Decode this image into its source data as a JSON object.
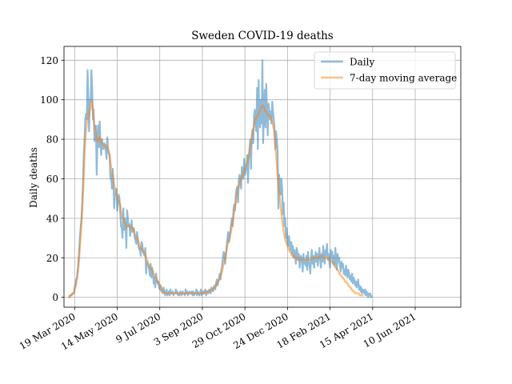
{
  "chart_data": {
    "type": "line",
    "title": "Sweden COVID-19 deaths",
    "xlabel": "",
    "ylabel": "Daily deaths",
    "x_type": "date",
    "xlim": [
      "2020-03-05",
      "2021-08-09"
    ],
    "ylim": [
      -5,
      127
    ],
    "xticks": [
      {
        "date": "2020-03-19",
        "label": "19 Mar 2020"
      },
      {
        "date": "2020-05-14",
        "label": "14 May 2020"
      },
      {
        "date": "2020-07-09",
        "label": "9 Jul 2020"
      },
      {
        "date": "2020-09-03",
        "label": "3 Sep 2020"
      },
      {
        "date": "2020-10-29",
        "label": "29 Oct 2020"
      },
      {
        "date": "2020-12-24",
        "label": "24 Dec 2020"
      },
      {
        "date": "2021-02-18",
        "label": "18 Feb 2021"
      },
      {
        "date": "2021-04-15",
        "label": "15 Apr 2021"
      },
      {
        "date": "2021-06-10",
        "label": "10 Jun 2021"
      }
    ],
    "yticks": [
      0,
      20,
      40,
      60,
      80,
      100,
      120
    ],
    "grid": true,
    "legend_position": "top-right",
    "start_date": "2020-03-11",
    "series": [
      {
        "name": "Daily",
        "color": "#1f77b4",
        "opacity": 0.5,
        "values": [
          0,
          0,
          1,
          1,
          1,
          2,
          2,
          2,
          5,
          6,
          9,
          10,
          14,
          18,
          24,
          31,
          36,
          40,
          48,
          58,
          72,
          80,
          90,
          93,
          90,
          115,
          101,
          84,
          100,
          99,
          115,
          107,
          90,
          95,
          79,
          81,
          87,
          62,
          80,
          87,
          76,
          89,
          78,
          72,
          80,
          77,
          75,
          78,
          77,
          74,
          70,
          81,
          74,
          73,
          72,
          60,
          62,
          55,
          65,
          58,
          45,
          52,
          53,
          55,
          44,
          48,
          52,
          50,
          43,
          36,
          35,
          30,
          45,
          34,
          40,
          37,
          25,
          44,
          40,
          36,
          37,
          31,
          35,
          39,
          33,
          34,
          35,
          30,
          29,
          27,
          33,
          30,
          26,
          24,
          25,
          21,
          28,
          27,
          23,
          22,
          21,
          25,
          12,
          18,
          17,
          16,
          14,
          11,
          17,
          10,
          15,
          12,
          7,
          10,
          5,
          12,
          9,
          7,
          8,
          5,
          4,
          6,
          3,
          4,
          2,
          5,
          3,
          1,
          2,
          4,
          1,
          2,
          3,
          1,
          4,
          2,
          2,
          3,
          1,
          2,
          2,
          4,
          2,
          3,
          1,
          2,
          1,
          3,
          2,
          1,
          3,
          2,
          2,
          1,
          4,
          2,
          3,
          1,
          2,
          3,
          2,
          2,
          3,
          1,
          3,
          1,
          2,
          2,
          4,
          1,
          3,
          2,
          1,
          2,
          4,
          1,
          2,
          3,
          2,
          3,
          4,
          1,
          2,
          3,
          2,
          4,
          3,
          2,
          5,
          4,
          3,
          5,
          6,
          4,
          7,
          9,
          6,
          8,
          10,
          12,
          9,
          14,
          16,
          20,
          23,
          22,
          17,
          21,
          26,
          30,
          33,
          28,
          31,
          34,
          38,
          40,
          36,
          45,
          47,
          44,
          52,
          55,
          56,
          48,
          60,
          62,
          58,
          55,
          66,
          64,
          60,
          70,
          62,
          64,
          66,
          72,
          58,
          70,
          75,
          80,
          65,
          82,
          85,
          78,
          92,
          95,
          88,
          84,
          106,
          75,
          110,
          93,
          86,
          100,
          88,
          120,
          78,
          94,
          105,
          86,
          108,
          96,
          82,
          98,
          95,
          90,
          94,
          88,
          99,
          94,
          90,
          85,
          75,
          84,
          80,
          74,
          45,
          62,
          58,
          52,
          60,
          55,
          42,
          48,
          36,
          40,
          30,
          35,
          28,
          26,
          31,
          27,
          24,
          28,
          22,
          26,
          20,
          24,
          21,
          17,
          25,
          23,
          19,
          22,
          15,
          20,
          21,
          18,
          13,
          22,
          17,
          19,
          16,
          21,
          14,
          23,
          18,
          16,
          12,
          20,
          24,
          17,
          21,
          15,
          19,
          23,
          18,
          22,
          16,
          21,
          25,
          19,
          15,
          22,
          18,
          26,
          20,
          17,
          24,
          21,
          27,
          19,
          22,
          18,
          15,
          24,
          20,
          23,
          17,
          21,
          16,
          25,
          19,
          14,
          22,
          18,
          20,
          16,
          13,
          18,
          15,
          17,
          12,
          14,
          11,
          16,
          13,
          10,
          14,
          12,
          9,
          11,
          8,
          12,
          7,
          10,
          9,
          6,
          8,
          5,
          7,
          9,
          4,
          6,
          3,
          5,
          2,
          4,
          3,
          2,
          4,
          1,
          3,
          2,
          0,
          2,
          1,
          2,
          0,
          1
        ]
      },
      {
        "name": "7-day moving average",
        "color": "#ff7f0e",
        "opacity": 0.5,
        "values": [
          0,
          0,
          1,
          1,
          1,
          2,
          2,
          2,
          4,
          5,
          7,
          9,
          12,
          15,
          20,
          26,
          31,
          37,
          44,
          52,
          62,
          71,
          79,
          84,
          87,
          91,
          93,
          92,
          95,
          96,
          99,
          99,
          94,
          91,
          87,
          85,
          83,
          80,
          79,
          80,
          79,
          81,
          80,
          78,
          78,
          77,
          77,
          77,
          77,
          77,
          76,
          76,
          75,
          74,
          72,
          69,
          66,
          63,
          62,
          60,
          57,
          55,
          54,
          53,
          51,
          49,
          49,
          48,
          47,
          44,
          42,
          40,
          40,
          38,
          38,
          37,
          35,
          36,
          36,
          36,
          36,
          35,
          35,
          36,
          35,
          34,
          34,
          32,
          31,
          30,
          30,
          30,
          28,
          27,
          26,
          25,
          25,
          24,
          24,
          23,
          22,
          22,
          20,
          19,
          18,
          17,
          16,
          15,
          15,
          14,
          14,
          13,
          12,
          11,
          10,
          10,
          9,
          8,
          8,
          7,
          6,
          6,
          5,
          4,
          3,
          3,
          3,
          2,
          2,
          2,
          2,
          2,
          2,
          2,
          2,
          2,
          2,
          2,
          2,
          2,
          2,
          2,
          2,
          2,
          2,
          2,
          2,
          2,
          2,
          2,
          2,
          2,
          2,
          2,
          2,
          2,
          2,
          2,
          2,
          2,
          2,
          2,
          2,
          2,
          2,
          2,
          2,
          2,
          2,
          2,
          2,
          2,
          2,
          2,
          2,
          2,
          2,
          2,
          2,
          2,
          3,
          3,
          3,
          3,
          3,
          3,
          3,
          4,
          4,
          4,
          4,
          5,
          5,
          5,
          6,
          7,
          7,
          8,
          9,
          10,
          11,
          12,
          13,
          15,
          17,
          19,
          20,
          22,
          24,
          26,
          28,
          29,
          30,
          32,
          34,
          36,
          38,
          41,
          43,
          46,
          48,
          51,
          53,
          55,
          56,
          57,
          59,
          60,
          61,
          62,
          63,
          64,
          65,
          66,
          67,
          68,
          70,
          72,
          74,
          76,
          78,
          80,
          83,
          85,
          87,
          89,
          90,
          91,
          92,
          92,
          93,
          94,
          95,
          96,
          96,
          97,
          97,
          96,
          95,
          94,
          94,
          93,
          92,
          92,
          92,
          92,
          91,
          90,
          89,
          87,
          85,
          82,
          77,
          72,
          67,
          62,
          58,
          54,
          50,
          46,
          42,
          39,
          36,
          33,
          31,
          29,
          28,
          27,
          26,
          25,
          24,
          23,
          23,
          22,
          21,
          21,
          21,
          21,
          20,
          20,
          20,
          19,
          19,
          19,
          19,
          19,
          19,
          19,
          19,
          19,
          19,
          19,
          19,
          19,
          19,
          19,
          19,
          19,
          19,
          19,
          19,
          20,
          20,
          20,
          20,
          20,
          20,
          20,
          20,
          20,
          21,
          21,
          21,
          21,
          21,
          21,
          20,
          20,
          20,
          20,
          20,
          20,
          19,
          19,
          19,
          19,
          18,
          18,
          17,
          17,
          16,
          15,
          15,
          14,
          14,
          13,
          12,
          12,
          11,
          11,
          10,
          10,
          9,
          9,
          8,
          8,
          7,
          7,
          6,
          6,
          5,
          5,
          4,
          4,
          3,
          3,
          3,
          2,
          2,
          2,
          2,
          2,
          2,
          1,
          1,
          1,
          1,
          1,
          1
        ]
      }
    ]
  }
}
